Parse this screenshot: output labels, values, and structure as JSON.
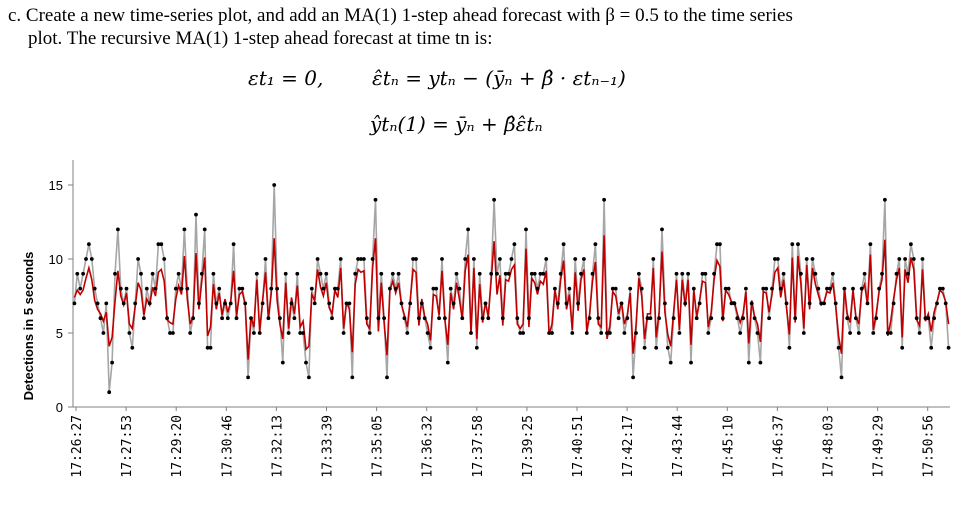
{
  "problem": {
    "line1": "c. Create a new time-series plot, and add an MA(1) 1-step ahead forecast with β = 0.5 to the time series",
    "line2": "plot.  The recursive MA(1) 1-step ahead forecast at time tn is:"
  },
  "formulas": {
    "f1": "εt₁ = 0,",
    "f2": "ε̂tₙ = ytₙ − (ȳₙ + β̂ · εtₙ₋₁)",
    "f3": "ŷtₙ(1) = ȳₙ + β̂ε̂tₙ"
  },
  "colors": {
    "observed": "#a6a6a6",
    "forecast": "#c00000",
    "points": "#000000"
  },
  "chart_data": {
    "type": "line",
    "ylabel": "Detections in 5 seconds",
    "ylim": [
      0,
      15
    ],
    "yticks": [
      0,
      5,
      10,
      15
    ],
    "xtick_labels": [
      "17:26:27",
      "17:27:53",
      "17:29:20",
      "17:30:46",
      "17:32:13",
      "17:33:39",
      "17:35:05",
      "17:36:32",
      "17:37:58",
      "17:39:25",
      "17:40:51",
      "17:42:17",
      "17:43:44",
      "17:45:10",
      "17:46:37",
      "17:48:03",
      "17:49:29",
      "17:50:56"
    ],
    "series": [
      {
        "marker": "point",
        "line_color": "gray",
        "values": [
          7,
          9,
          8,
          9,
          10,
          11,
          10,
          8,
          7,
          6,
          5,
          7,
          1,
          3,
          9,
          12,
          8,
          7,
          8,
          5,
          4,
          7,
          10,
          9,
          6,
          8,
          7,
          9,
          8,
          11,
          11,
          10,
          6,
          5,
          5,
          8,
          9,
          8,
          12,
          8,
          5,
          6,
          13,
          7,
          9,
          12,
          4,
          4,
          9,
          7,
          8,
          6,
          7,
          6,
          7,
          11,
          6,
          8,
          8,
          7,
          2,
          6,
          5,
          9,
          5,
          7,
          10,
          6,
          8,
          15,
          8,
          6,
          3,
          9,
          5,
          7,
          6,
          9,
          5,
          5,
          3,
          2,
          8,
          7,
          10,
          9,
          8,
          9,
          7,
          6,
          8,
          8,
          10,
          5,
          7,
          7,
          2,
          9,
          10,
          10,
          10,
          6,
          5,
          10,
          14,
          6,
          9,
          6,
          2,
          8,
          9,
          8,
          9,
          7,
          6,
          5,
          7,
          10,
          10,
          6,
          7,
          6,
          5,
          4,
          8,
          8,
          6,
          10,
          6,
          3,
          8,
          7,
          9,
          8,
          6,
          10,
          12,
          5,
          10,
          4,
          9,
          6,
          7,
          6,
          9,
          14,
          9,
          10,
          6,
          9,
          9,
          10,
          11,
          6,
          5,
          5,
          12,
          6,
          9,
          9,
          8,
          9,
          9,
          10,
          5,
          5,
          8,
          7,
          9,
          11,
          7,
          8,
          5,
          10,
          7,
          9,
          10,
          5,
          6,
          9,
          11,
          6,
          5,
          14,
          5,
          5,
          8,
          8,
          6,
          7,
          5,
          6,
          8,
          2,
          5,
          9,
          8,
          4,
          6,
          6,
          10,
          4,
          6,
          12,
          7,
          4,
          3,
          6,
          9,
          5,
          9,
          7,
          9,
          3,
          8,
          6,
          7,
          9,
          9,
          5,
          6,
          9,
          11,
          11,
          6,
          8,
          8,
          7,
          7,
          6,
          5,
          6,
          8,
          3,
          7,
          6,
          5,
          3,
          8,
          8,
          6,
          8,
          10,
          10,
          8,
          9,
          7,
          4,
          11,
          6,
          11,
          9,
          5,
          10,
          7,
          10,
          9,
          8,
          7,
          7,
          8,
          8,
          9,
          7,
          4,
          2,
          8,
          6,
          5,
          8,
          6,
          5,
          8,
          9,
          7,
          11,
          5,
          6,
          8,
          9,
          14,
          5,
          5,
          7,
          9,
          10,
          4,
          10,
          9,
          11,
          10,
          6,
          5,
          10,
          6,
          6,
          4,
          6,
          7,
          8,
          8,
          7,
          4
        ],
        "name": ""
      },
      {
        "marker": "none",
        "line_color": "red",
        "values": [
          7.4,
          7.9,
          7.6,
          7.9,
          8.7,
          9.4,
          8.6,
          7.2,
          6.6,
          6.3,
          5.8,
          6.4,
          4.1,
          4.7,
          7.1,
          9.2,
          7.5,
          6.9,
          7.7,
          5.6,
          5.3,
          6.8,
          8.4,
          7.9,
          6.2,
          7.3,
          6.9,
          8.1,
          7.5,
          9.1,
          9.3,
          8.5,
          5.9,
          5.7,
          5.6,
          7.3,
          8.2,
          7.6,
          10.2,
          7.3,
          5.6,
          6.1,
          10.4,
          6.6,
          8.5,
          10.1,
          4.8,
          5.4,
          8.3,
          6.6,
          7.7,
          6.2,
          7.3,
          6.4,
          7.1,
          9.2,
          6.1,
          7.6,
          7.8,
          6.9,
          3.2,
          6.1,
          5.4,
          8.6,
          5.1,
          7.2,
          9.1,
          5.9,
          7.7,
          11.4,
          7.2,
          5.6,
          4.6,
          8.4,
          5.3,
          7.4,
          6.3,
          8.2,
          5.4,
          5.8,
          3.9,
          4.1,
          7.6,
          7.2,
          9.3,
          8.1,
          7.5,
          8.4,
          6.7,
          6.3,
          7.9,
          7.4,
          9.4,
          5.3,
          7.1,
          6.6,
          3.7,
          8.3,
          9.3,
          9.1,
          9.2,
          5.6,
          5.3,
          9.4,
          11.4,
          5.1,
          8.4,
          5.7,
          3.5,
          7.9,
          8.5,
          7.7,
          8.4,
          6.9,
          6.2,
          5.4,
          7.2,
          9.3,
          9.1,
          5.5,
          7.3,
          6.1,
          5.6,
          4.5,
          7.6,
          7.5,
          6.2,
          9.2,
          5.9,
          4.2,
          7.7,
          6.6,
          8.4,
          7.3,
          5.9,
          9.2,
          10.3,
          4.9,
          9.4,
          4.6,
          8.3,
          5.7,
          7.1,
          6.1,
          8.6,
          11.2,
          7.6,
          8.9,
          5.5,
          8.6,
          8.5,
          9.3,
          9.6,
          5.6,
          5.3,
          5.6,
          10.7,
          5.4,
          8.7,
          8.4,
          7.6,
          8.5,
          8.3,
          9.2,
          4.9,
          5.6,
          7.9,
          6.6,
          8.6,
          9.9,
          6.6,
          7.6,
          5.2,
          9.1,
          6.5,
          8.6,
          9.3,
          5.1,
          6.3,
          8.5,
          9.8,
          5.6,
          5.4,
          11.6,
          4.6,
          5.5,
          7.8,
          7.5,
          6.3,
          7.1,
          5.6,
          6.2,
          7.7,
          3.6,
          5.5,
          8.7,
          7.5,
          4.6,
          6.3,
          6.3,
          9.4,
          4.7,
          6.4,
          10.5,
          6.4,
          4.9,
          4.1,
          6.4,
          8.6,
          5.2,
          8.6,
          6.8,
          8.6,
          4.2,
          7.9,
          6.1,
          7.2,
          8.5,
          8.4,
          5.4,
          6.4,
          8.6,
          9.9,
          9.5,
          5.8,
          7.9,
          7.6,
          7.1,
          7.1,
          6.3,
          5.7,
          6.3,
          7.8,
          4.3,
          7.2,
          6.1,
          5.6,
          4.4,
          7.8,
          7.7,
          6.4,
          7.6,
          9.1,
          9.4,
          7.4,
          8.6,
          6.7,
          4.9,
          10.1,
          5.7,
          10.2,
          8.3,
          5.3,
          9.6,
          6.6,
          9.4,
          8.3,
          7.6,
          6.9,
          7.1,
          7.8,
          7.7,
          8.4,
          6.8,
          4.8,
          3.6,
          8.1,
          6.3,
          5.7,
          7.9,
          6.1,
          5.6,
          7.8,
          8.3,
          6.9,
          10.3,
          5.2,
          6.3,
          7.8,
          8.6,
          11.3,
          4.8,
          5.8,
          7.3,
          8.6,
          9.4,
          4.7,
          9.3,
          8.4,
          10.1,
          9.3,
          5.9,
          5.5,
          9.3,
          5.8,
          6.3,
          5.1,
          6.4,
          7.1,
          7.9,
          7.7,
          7.1,
          5.6
        ],
        "name": ""
      }
    ]
  }
}
